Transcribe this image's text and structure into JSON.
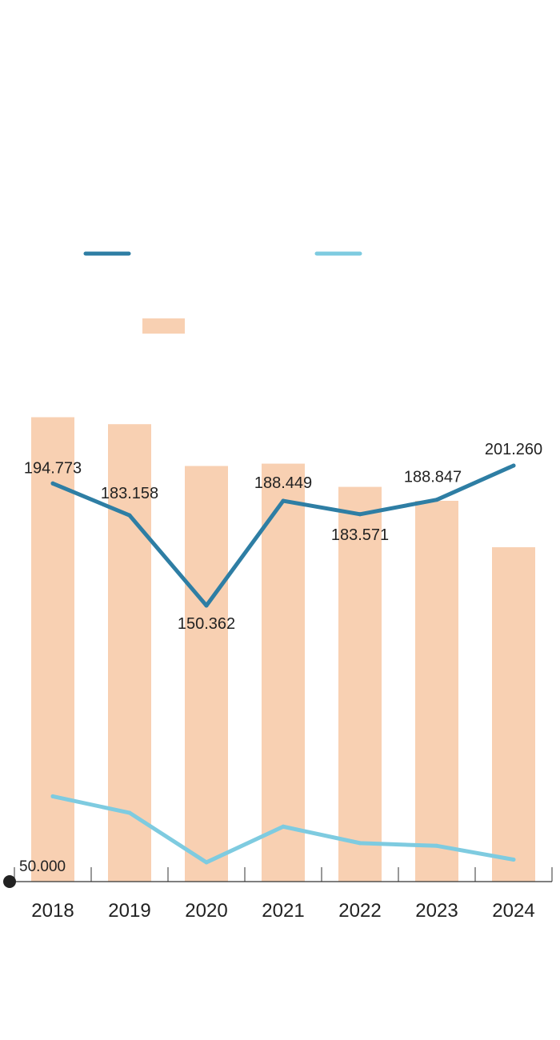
{
  "chart_data": {
    "type": "bar",
    "categories": [
      "2018",
      "2019",
      "2020",
      "2021",
      "2022",
      "2023",
      "2024"
    ],
    "baseline_label": "50.000",
    "y_base": 50,
    "ylim_line": [
      50,
      201.26
    ],
    "ylim_bars": [
      50,
      255
    ],
    "series": [
      {
        "kind": "line",
        "color": "#2e7ea4",
        "values": [
          194.773,
          183.158,
          150.362,
          188.449,
          183.571,
          188.847,
          201.26
        ],
        "labels": [
          "194.773",
          "183.158",
          "150.362",
          "188.449",
          "183.571",
          "188.847",
          "201.260"
        ]
      },
      {
        "kind": "line",
        "color": "#7ecbe0",
        "values": [
          81,
          75,
          57,
          70,
          64,
          63,
          58
        ]
      },
      {
        "kind": "bar",
        "color": "#f8d0b2",
        "values": [
          250,
          247,
          229,
          230,
          220,
          214,
          194
        ]
      }
    ],
    "legend": [
      {
        "color": "#2e7ea4",
        "shape": "line"
      },
      {
        "color": "#7ecbe0",
        "shape": "line"
      },
      {
        "color": "#f8d0b2",
        "shape": "box"
      }
    ],
    "grid": false
  }
}
